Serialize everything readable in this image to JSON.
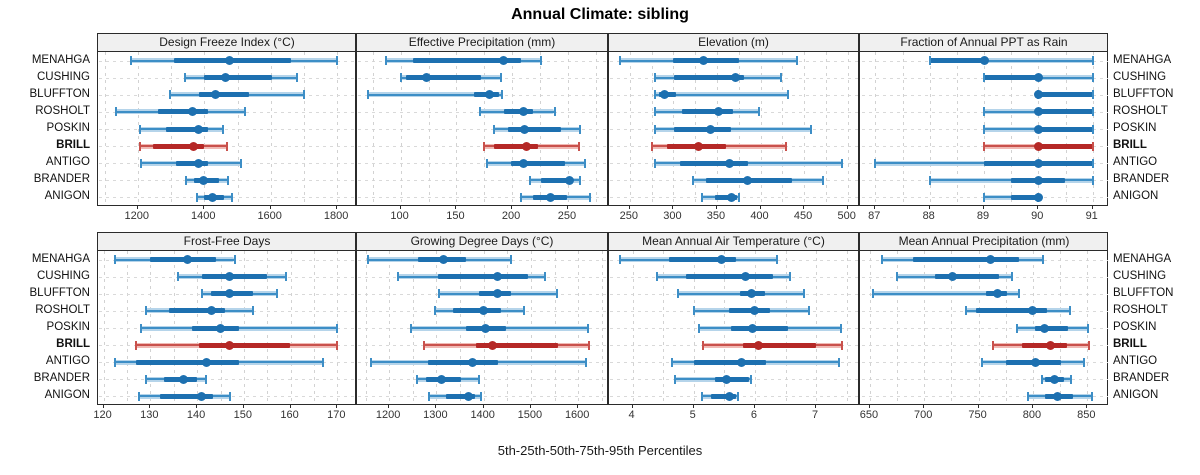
{
  "title": "Annual Climate: sibling",
  "footer": {
    "xlabel": "5th-25th-50th-75th-95th Percentiles"
  },
  "sites": [
    "MENAHGA",
    "CUSHING",
    "BLUFFTON",
    "ROSHOLT",
    "POSKIN",
    "BRILL",
    "ANTIGO",
    "BRANDER",
    "ANIGON"
  ],
  "highlight_site": "BRILL",
  "percentile_levels": [
    5,
    25,
    50,
    75,
    95
  ],
  "colors": {
    "blue_dark": "#1d70b0",
    "blue_mid": "#3d8ec6",
    "blue_light": "#b5d4ea",
    "red_dark": "#b52826",
    "red_mid": "#c9514c",
    "red_light": "#f0b9b4",
    "header_bg": "#f0f0f0",
    "panel_border": "#2b2b2b",
    "grid": "#d2d2d2",
    "tick_text": "#333333"
  },
  "chart_data": [
    {
      "type": "dotplot-interval",
      "title": "Design Freeze Index (°C)",
      "xlim": [
        1080,
        1857
      ],
      "ticks": [
        1200,
        1400,
        1600,
        1800
      ],
      "grid_step": 100,
      "values": [
        [
          1180,
          1310,
          1475,
          1660,
          1800
        ],
        [
          1342,
          1400,
          1463,
          1605,
          1680
        ],
        [
          1298,
          1385,
          1435,
          1535,
          1700
        ],
        [
          1133,
          1260,
          1363,
          1410,
          1523
        ],
        [
          1205,
          1285,
          1383,
          1410,
          1455
        ],
        [
          1205,
          1245,
          1367,
          1400,
          1468
        ],
        [
          1208,
          1315,
          1383,
          1410,
          1512
        ],
        [
          1345,
          1370,
          1398,
          1445,
          1470
        ],
        [
          1378,
          1400,
          1425,
          1460,
          1483
        ]
      ]
    },
    {
      "type": "dotplot-interval",
      "title": "Effective Precipitation (mm)",
      "xlim": [
        60,
        286
      ],
      "ticks": [
        100,
        150,
        200,
        250
      ],
      "grid_step": 25,
      "values": [
        [
          87,
          111,
          192,
          208,
          226
        ],
        [
          100,
          105,
          123,
          172,
          190
        ],
        [
          71,
          166,
          180,
          188,
          191
        ],
        [
          171,
          193,
          210,
          219,
          238
        ],
        [
          184,
          196,
          211,
          244,
          261
        ],
        [
          175,
          184,
          213,
          223,
          260
        ],
        [
          177,
          199,
          210,
          247,
          265
        ],
        [
          216,
          226,
          251,
          254,
          261
        ],
        [
          208,
          219,
          234,
          249,
          270
        ]
      ]
    },
    {
      "type": "dotplot-interval",
      "title": "Elevation (m)",
      "xlim": [
        225,
        513
      ],
      "ticks": [
        250,
        300,
        350,
        400,
        450,
        500
      ],
      "grid_step": 25,
      "values": [
        [
          239,
          299,
          335,
          375,
          442
        ],
        [
          279,
          301,
          371,
          381,
          423
        ],
        [
          279,
          284,
          290,
          303,
          432
        ],
        [
          279,
          310,
          352,
          368,
          398
        ],
        [
          279,
          301,
          343,
          366,
          458
        ],
        [
          275,
          293,
          329,
          360,
          429
        ],
        [
          279,
          307,
          364,
          385,
          493
        ],
        [
          322,
          337,
          385,
          436,
          472
        ],
        [
          333,
          348,
          367,
          373,
          375
        ]
      ]
    },
    {
      "type": "dotplot-interval",
      "title": "Fraction of Annual PPT as Rain",
      "xlim": [
        86.7,
        91.3
      ],
      "ticks": [
        87,
        88,
        89,
        90,
        91
      ],
      "grid_step": 0.5,
      "values": [
        [
          88,
          88,
          89,
          89,
          91
        ],
        [
          89,
          89,
          90,
          90,
          91
        ],
        [
          90,
          90,
          90,
          91,
          91
        ],
        [
          89,
          90,
          90,
          91,
          91
        ],
        [
          89,
          90,
          90,
          91,
          91
        ],
        [
          89,
          90,
          90,
          91,
          91
        ],
        [
          87,
          89,
          90,
          91,
          91
        ],
        [
          88,
          89.5,
          90,
          90.5,
          91
        ],
        [
          89,
          89.5,
          90,
          90,
          90
        ]
      ]
    },
    {
      "type": "dotplot-interval",
      "title": "Frost-Free Days",
      "xlim": [
        118.8,
        174
      ],
      "ticks": [
        120,
        130,
        140,
        150,
        160,
        170
      ],
      "grid_step": 5,
      "values": [
        [
          122.5,
          130,
          138,
          144,
          148
        ],
        [
          136,
          141,
          147,
          155,
          159
        ],
        [
          141,
          143,
          147,
          152,
          157
        ],
        [
          129,
          134,
          143,
          146,
          152
        ],
        [
          128,
          139,
          145,
          149,
          170
        ],
        [
          127,
          140.5,
          147,
          160,
          170
        ],
        [
          122.5,
          127,
          142,
          149,
          167
        ],
        [
          129,
          133,
          137,
          140,
          142
        ],
        [
          127.5,
          132,
          141,
          143.5,
          147
        ]
      ]
    },
    {
      "type": "dotplot-interval",
      "title": "Growing Degree Days (°C)",
      "xlim": [
        1130,
        1663
      ],
      "ticks": [
        1200,
        1300,
        1400,
        1500,
        1600
      ],
      "grid_step": 50,
      "values": [
        [
          1156,
          1261,
          1316,
          1363,
          1457
        ],
        [
          1219,
          1303,
          1429,
          1493,
          1530
        ],
        [
          1306,
          1390,
          1429,
          1458,
          1555
        ],
        [
          1298,
          1334,
          1400,
          1436,
          1485
        ],
        [
          1246,
          1363,
          1404,
          1448,
          1620
        ],
        [
          1274,
          1384,
          1419,
          1558,
          1623
        ],
        [
          1161,
          1282,
          1376,
          1430,
          1616
        ],
        [
          1259,
          1279,
          1310,
          1353,
          1390
        ],
        [
          1284,
          1321,
          1368,
          1381,
          1395
        ]
      ]
    },
    {
      "type": "dotplot-interval",
      "title": "Mean Annual Air Temperature (°C)",
      "xlim": [
        3.6,
        7.7
      ],
      "ticks": [
        4,
        5,
        6,
        7
      ],
      "grid_step": 0.5,
      "values": [
        [
          3.8,
          4.6,
          5.45,
          5.7,
          6.36
        ],
        [
          4.4,
          4.87,
          5.84,
          6.29,
          6.58
        ],
        [
          4.75,
          5.75,
          5.95,
          6.16,
          6.8
        ],
        [
          5.0,
          5.57,
          6.0,
          6.24,
          6.89
        ],
        [
          5.09,
          5.61,
          5.96,
          6.54,
          7.4
        ],
        [
          5.15,
          5.8,
          6.05,
          7.0,
          7.42
        ],
        [
          4.65,
          5.0,
          5.78,
          6.18,
          7.38
        ],
        [
          4.7,
          5.34,
          5.53,
          5.91,
          5.94
        ],
        [
          5.13,
          5.28,
          5.58,
          5.69,
          5.72
        ]
      ]
    },
    {
      "type": "dotplot-interval",
      "title": "Mean Annual Precipitation (mm)",
      "xlim": [
        640,
        870
      ],
      "ticks": [
        650,
        700,
        750,
        800,
        850
      ],
      "grid_step": 25,
      "values": [
        [
          661,
          690,
          761,
          787,
          809
        ],
        [
          675,
          710,
          726,
          769,
          781
        ],
        [
          653,
          757,
          767,
          776,
          787
        ],
        [
          738,
          748,
          800,
          813,
          834
        ],
        [
          785,
          802,
          811,
          832,
          851
        ],
        [
          763,
          790,
          816,
          831,
          852
        ],
        [
          753,
          775,
          802,
          826,
          847
        ],
        [
          808,
          811,
          820,
          829,
          835
        ],
        [
          795,
          811,
          823,
          837,
          854
        ]
      ]
    }
  ]
}
